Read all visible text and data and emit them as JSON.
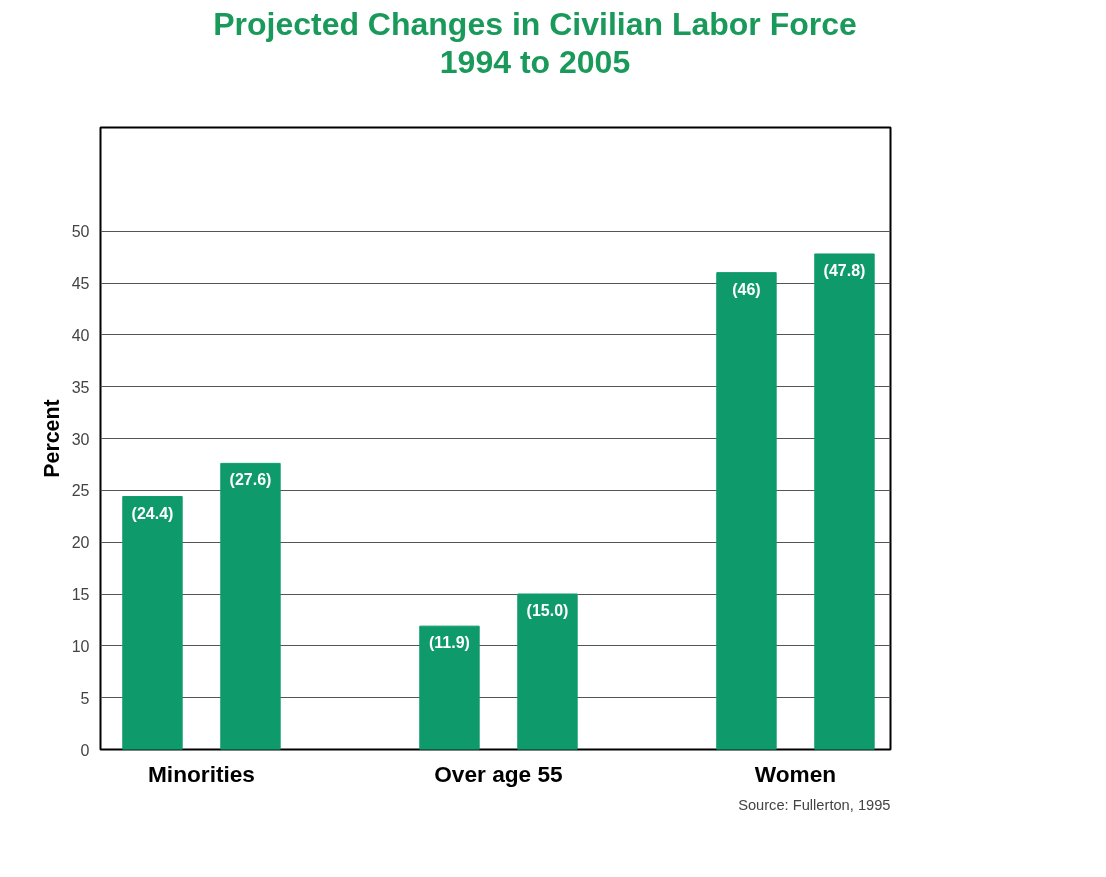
{
  "chart_data": {
    "type": "bar",
    "title": "Projected Changes in Civilian Labor Force\n1994 to 2005",
    "ylabel": "Percent",
    "categories": [
      "Minorities",
      "Over age 55",
      "Women"
    ],
    "series": [
      {
        "color": "#0f9a6c",
        "values": [
          24.4,
          11.9,
          46
        ],
        "value_labels": [
          "(24.4)",
          "(11.9)",
          "(46)"
        ]
      },
      {
        "color": "#0f9a6c",
        "values": [
          27.6,
          15.0,
          47.8
        ],
        "value_labels": [
          "(27.6)",
          "(15.0)",
          "(47.8)"
        ]
      }
    ],
    "ylim": [
      0,
      60
    ],
    "yticks": [
      0,
      5,
      10,
      15,
      20,
      25,
      30,
      35,
      40,
      45,
      50
    ],
    "grid": "y",
    "annotations": [
      "Source: Fullerton, 1995"
    ]
  }
}
